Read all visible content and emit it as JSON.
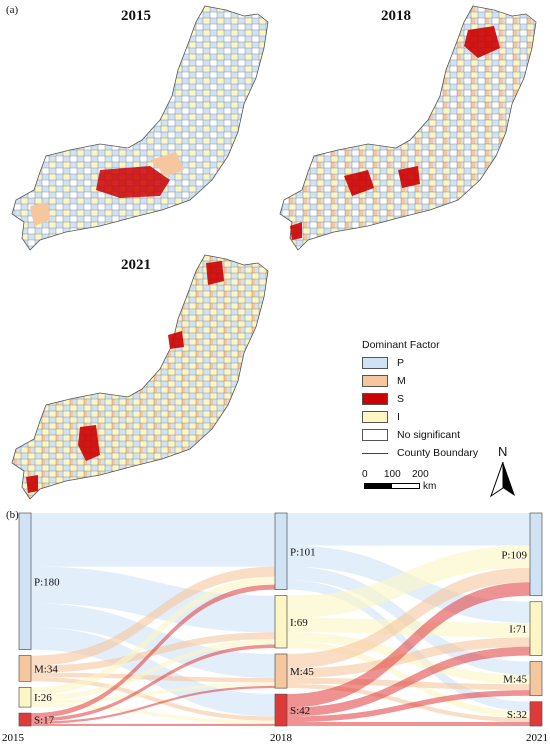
{
  "panel_a_label": "(a)",
  "panel_b_label": "(b)",
  "maps": [
    {
      "year": "2015"
    },
    {
      "year": "2018"
    },
    {
      "year": "2021"
    }
  ],
  "legend": {
    "title": "Dominant Factor",
    "items": [
      {
        "label": "P",
        "color": "#cfe3f5"
      },
      {
        "label": "M",
        "color": "#f6c79e"
      },
      {
        "label": "S",
        "color": "#cc0000"
      },
      {
        "label": "I",
        "color": "#fbf6c4"
      },
      {
        "label": "No significant",
        "color": "#ffffff"
      }
    ],
    "boundary_label": "County  Boundary"
  },
  "scale": {
    "ticks": [
      "0",
      "100",
      "200"
    ],
    "unit": "km"
  },
  "north_label": "N",
  "sankey": {
    "years": [
      "2015",
      "2018",
      "2021"
    ],
    "colors": {
      "P": "#cfe3f5",
      "M": "#f6c79e",
      "S": "#e0393a",
      "I": "#fbf6c4"
    },
    "nodes": [
      [
        {
          "cat": "P",
          "label": "P:180",
          "value": 180
        },
        {
          "cat": "M",
          "label": "M:34",
          "value": 34
        },
        {
          "cat": "I",
          "label": "I:26",
          "value": 26
        },
        {
          "cat": "S",
          "label": "S:17",
          "value": 17
        }
      ],
      [
        {
          "cat": "P",
          "label": "P:101",
          "value": 101
        },
        {
          "cat": "I",
          "label": "I:69",
          "value": 69
        },
        {
          "cat": "M",
          "label": "M:45",
          "value": 45
        },
        {
          "cat": "S",
          "label": "S:42",
          "value": 42
        }
      ],
      [
        {
          "cat": "P",
          "label": "P:109",
          "value": 109
        },
        {
          "cat": "I",
          "label": "I:71",
          "value": 71
        },
        {
          "cat": "M",
          "label": "M:45",
          "value": 45
        },
        {
          "cat": "S",
          "label": "S:32",
          "value": 32
        }
      ]
    ]
  }
}
